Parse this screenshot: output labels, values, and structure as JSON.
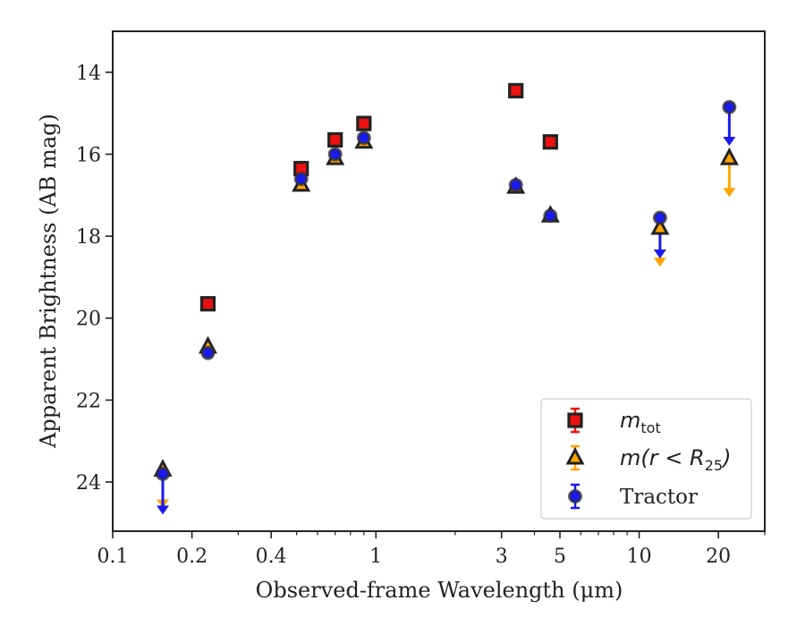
{
  "chart_data": {
    "type": "scatter",
    "xlabel": "Observed-frame Wavelength (μm)",
    "ylabel": "Apparent Brightness (AB mag)",
    "x_scale": "log",
    "xlim": [
      0.1,
      30
    ],
    "ylim": [
      25.2,
      13
    ],
    "y_inverted": true,
    "x_ticks": [
      0.1,
      0.2,
      0.4,
      1,
      3,
      5,
      10,
      20
    ],
    "x_tick_labels": [
      "0.1",
      "0.2",
      "0.4",
      "1",
      "3",
      "5",
      "10",
      "20"
    ],
    "y_ticks": [
      14,
      16,
      18,
      20,
      22,
      24
    ],
    "y_tick_labels": [
      "14",
      "16",
      "18",
      "20",
      "22",
      "24"
    ],
    "legend_position": "lower-right",
    "series": [
      {
        "name": "m_tot",
        "legend_main": "m",
        "legend_sub": "tot",
        "marker": "square",
        "color": "#ee1111",
        "points": [
          {
            "x": 0.23,
            "y": 19.65
          },
          {
            "x": 0.52,
            "y": 16.35
          },
          {
            "x": 0.7,
            "y": 15.65
          },
          {
            "x": 0.9,
            "y": 15.25
          },
          {
            "x": 3.4,
            "y": 14.45
          },
          {
            "x": 4.6,
            "y": 15.7
          }
        ],
        "upper_limits": []
      },
      {
        "name": "m(r<R25)",
        "legend_main": "m",
        "legend_paren_open": "(",
        "legend_r": "r",
        "legend_lt": " < ",
        "legend_R": "R",
        "legend_sub": "25",
        "legend_paren_close": ")",
        "marker": "triangle",
        "color": "#ffa500",
        "points": [
          {
            "x": 0.155,
            "y": 23.7
          },
          {
            "x": 0.23,
            "y": 20.7
          },
          {
            "x": 0.52,
            "y": 16.75
          },
          {
            "x": 0.7,
            "y": 16.1
          },
          {
            "x": 0.9,
            "y": 15.7
          },
          {
            "x": 3.4,
            "y": 16.8
          },
          {
            "x": 4.6,
            "y": 17.5
          },
          {
            "x": 12,
            "y": 17.8
          },
          {
            "x": 22,
            "y": 16.1
          }
        ],
        "upper_limits": [
          {
            "x": 0.155,
            "y_from": 23.7,
            "y_to": 24.6
          },
          {
            "x": 12,
            "y_from": 17.8,
            "y_to": 18.7
          },
          {
            "x": 22,
            "y_from": 16.1,
            "y_to": 17.0
          }
        ]
      },
      {
        "name": "Tractor",
        "legend_main": "Tractor",
        "marker": "circle",
        "color": "#1a1aee",
        "points": [
          {
            "x": 0.155,
            "y": 23.8
          },
          {
            "x": 0.23,
            "y": 20.85
          },
          {
            "x": 0.52,
            "y": 16.6
          },
          {
            "x": 0.7,
            "y": 16.0
          },
          {
            "x": 0.9,
            "y": 15.6
          },
          {
            "x": 3.4,
            "y": 16.75
          },
          {
            "x": 4.6,
            "y": 17.5
          },
          {
            "x": 12,
            "y": 17.55
          },
          {
            "x": 22,
            "y": 14.85
          }
        ],
        "upper_limits": [
          {
            "x": 0.155,
            "y_from": 23.8,
            "y_to": 24.75
          },
          {
            "x": 12,
            "y_from": 17.55,
            "y_to": 18.5
          },
          {
            "x": 22,
            "y_from": 14.85,
            "y_to": 15.75
          }
        ]
      }
    ]
  }
}
